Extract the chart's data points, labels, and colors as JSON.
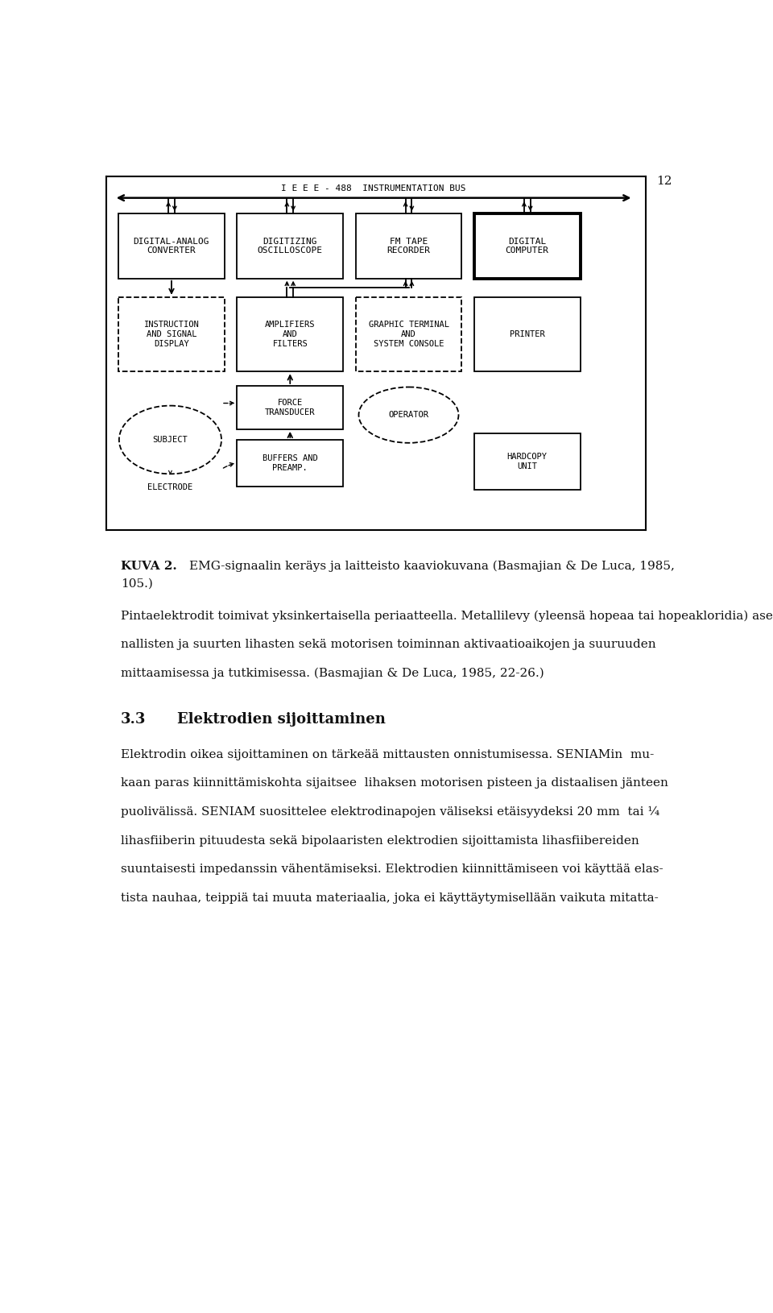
{
  "page_number": "12",
  "background_color": "#ffffff",
  "text_color": "#1a1a1a",
  "bus_label": "I E E E - 488  INSTRUMENTATION BUS",
  "row1_labels": [
    "DIGITAL-ANALOG\nCONVERTER",
    "DIGITIZING\nOSCILLOSCOPE",
    "FM TAPE\nRECORDER",
    "DIGITAL\nCOMPUTER"
  ],
  "row1_bold": [
    false,
    false,
    false,
    true
  ],
  "row2_labels": [
    "INSTRUCTION\nAND SIGNAL\nDISPLAY",
    "AMPLIFIERS\nAND\nFILTERS",
    "GRAPHIC TERMINAL\nAND\nSYSTEM CONSOLE",
    "PRINTER"
  ],
  "row2_dashed": [
    true,
    false,
    true,
    false
  ],
  "caption_label": "KUVA 2.",
  "caption_rest": "EMG-signaalin keräys ja laitteisto kaaviokuvana (Basmajian & De Luca, 1985,",
  "caption_cont": "105.)",
  "para1": "Pintaelektrodit toimivat yksinkertaisella periaatteella. Metallilevy (yleensä hopeaa tai hopeakloridia) asetetaan ihon pinnalle, josta se mittaa ihon lävitse lihaksen sähköistä aktiivisuutta. Pintaelektrodien etuja ovat käyttömukavuus, helppo saatavuus ja pieni haitta koehenkilölle. Pintaelektrodien käyttö vaatii kuitenkin valmistelua ennen kuin niitä voidaan kiinnittää ihon pinnalle. Pintaelektrodien käyttö on suositeltavaa vain pin-",
  "para1b": "nallisten ja suurten lihasten sekä motorisen toiminnan aktivaatioaikojen ja suuruuden",
  "para1c": "mittaamisessa ja tutkimisessa. (Basmajian & De Luca, 1985, 22-26.)",
  "heading_num": "3.3",
  "heading_text": "Elektrodien sijoittaminen",
  "para2a": "Elektrodin oikea sijoittaminen on tärkeää mittausten onnistumisessa. SENIAMin  mu-",
  "para2b": "kaan paras kiinnittämiskohta sijaitsee  lihaksen motorisen pisteen ja distaalisen jänteen",
  "para2c": "puolivälissä. SENIAM suosittelee elektrodinapojen väliseksi etäisyydeksi 20 mm  tai ¼",
  "para2d": "lihasfiiberin pituudesta sekä bipolaaristen elektrodien sijoittamista lihasfiibereiden",
  "para2e": "suuntaisesti impedanssin vähentämiseksi. Elektrodien kiinnittämiseen voi käyttää elas-",
  "para2f": "tista nauhaa, teippiä tai muuta materiaalia, joka ei käyttäytymisellään vaikuta mitatta-"
}
